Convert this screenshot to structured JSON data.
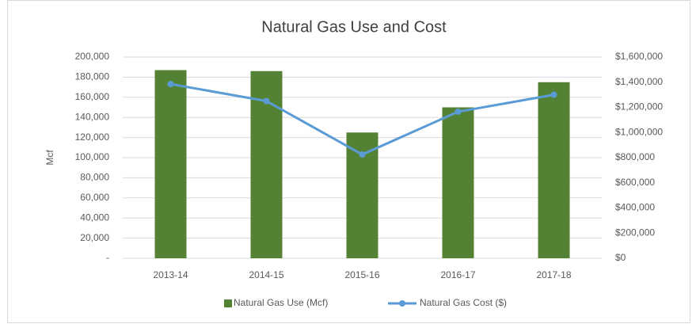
{
  "chart_data": {
    "type": "bar",
    "title": "Natural Gas Use and Cost",
    "ylabel": "Mcf",
    "categories": [
      "2013-14",
      "2014-15",
      "2015-16",
      "2016-17",
      "2017-18"
    ],
    "series": [
      {
        "name": "Natural Gas Use (Mcf)",
        "type": "bar",
        "color": "#548235",
        "values": [
          187000,
          186000,
          125000,
          150000,
          175000
        ]
      },
      {
        "name": "Natural Gas Cost ($)",
        "type": "line",
        "axis": "y2",
        "color": "#5b9bd5",
        "values": [
          1385000,
          1250000,
          825000,
          1165000,
          1300000
        ]
      }
    ],
    "ylim": [
      0,
      200000
    ],
    "yticks": [
      {
        "value": 0,
        "label": "-"
      },
      {
        "value": 20000,
        "label": "20,000"
      },
      {
        "value": 40000,
        "label": "40,000"
      },
      {
        "value": 60000,
        "label": "60,000"
      },
      {
        "value": 80000,
        "label": "80,000"
      },
      {
        "value": 100000,
        "label": "100,000"
      },
      {
        "value": 120000,
        "label": "120,000"
      },
      {
        "value": 140000,
        "label": "140,000"
      },
      {
        "value": 160000,
        "label": "160,000"
      },
      {
        "value": 180000,
        "label": "180,000"
      },
      {
        "value": 200000,
        "label": "200,000"
      }
    ],
    "y2lim": [
      0,
      1600000
    ],
    "y2ticks": [
      {
        "value": 0,
        "label": "$0"
      },
      {
        "value": 200000,
        "label": "$200,000"
      },
      {
        "value": 400000,
        "label": "$400,000"
      },
      {
        "value": 600000,
        "label": "$600,000"
      },
      {
        "value": 800000,
        "label": "$800,000"
      },
      {
        "value": 1000000,
        "label": "$1,000,000"
      },
      {
        "value": 1200000,
        "label": "$1,200,000"
      },
      {
        "value": 1400000,
        "label": "$1,400,000"
      },
      {
        "value": 1600000,
        "label": "$1,600,000"
      }
    ],
    "grid": true,
    "legend": "bottom"
  }
}
